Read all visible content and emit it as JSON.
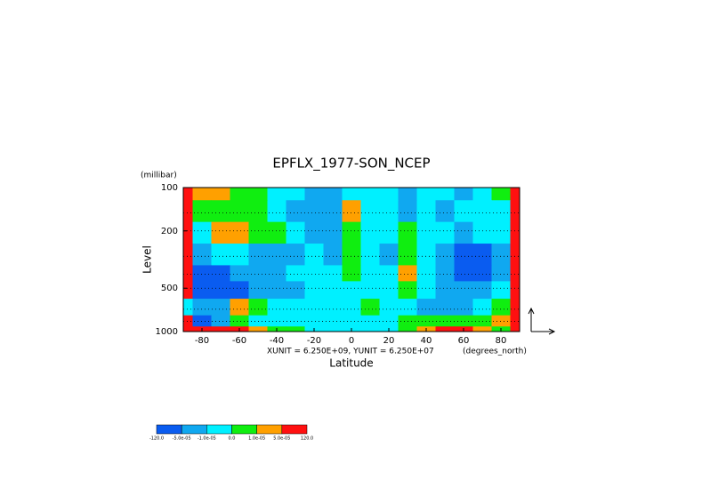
{
  "chart_data": {
    "type": "contour",
    "title": "EPFLX_1977-SON_NCEP",
    "y_unit_label": "(millibar)",
    "y_label": "Level",
    "x_label": "Latitude",
    "x_unit_label": "(degrees_north)",
    "vector_units": "XUNIT = 6.250E+09, YUNIT = 6.250E+07",
    "xlim": [
      -90,
      90
    ],
    "ylim": [
      1000,
      100
    ],
    "y_log": true,
    "grid": true,
    "xticks": [
      -80,
      -60,
      -40,
      -20,
      0,
      20,
      40,
      60,
      80
    ],
    "yticks": [
      100,
      200,
      500,
      1000
    ],
    "x": [
      -90,
      -80,
      -70,
      -60,
      -50,
      -40,
      -30,
      -20,
      -10,
      0,
      10,
      20,
      30,
      40,
      50,
      60,
      70,
      80,
      90
    ],
    "y": [
      100,
      150,
      200,
      300,
      400,
      500,
      700,
      850,
      1000
    ],
    "z": [
      [
        0.0001,
        3e-05,
        3e-05,
        5e-06,
        5e-06,
        -5e-06,
        -5e-06,
        -3e-05,
        -3e-05,
        -5e-06,
        -5e-06,
        -5e-06,
        -3e-05,
        -5e-06,
        -5e-06,
        -3e-05,
        -5e-06,
        5e-06,
        0.0001
      ],
      [
        0.0001,
        5e-06,
        5e-06,
        5e-06,
        5e-06,
        -5e-06,
        -3e-05,
        -3e-05,
        -3e-05,
        3e-05,
        -5e-06,
        -5e-06,
        -3e-05,
        -5e-06,
        -3e-05,
        -5e-06,
        -5e-06,
        -5e-06,
        0.0001
      ],
      [
        0.0001,
        -5e-06,
        3e-05,
        3e-05,
        5e-06,
        5e-06,
        -5e-06,
        -3e-05,
        -3e-05,
        5e-06,
        -5e-06,
        -5e-06,
        5e-06,
        -5e-06,
        -5e-06,
        -3e-05,
        -5e-06,
        -5e-06,
        0.0001
      ],
      [
        0.0001,
        -3e-05,
        -5e-06,
        -5e-06,
        -3e-05,
        -3e-05,
        -3e-05,
        -5e-06,
        -3e-05,
        5e-06,
        -5e-06,
        -3e-05,
        5e-06,
        -5e-06,
        -3e-05,
        -0.0001,
        -0.0001,
        -3e-05,
        0.0001
      ],
      [
        0.0001,
        -0.0001,
        -0.0001,
        -3e-05,
        -3e-05,
        -3e-05,
        -5e-06,
        -5e-06,
        -5e-06,
        5e-06,
        -5e-06,
        -5e-06,
        3e-05,
        -5e-06,
        -3e-05,
        -0.0001,
        -0.0001,
        -3e-05,
        0.0001
      ],
      [
        0.0001,
        -0.0001,
        -0.0001,
        -0.0001,
        -3e-05,
        -3e-05,
        -3e-05,
        -5e-06,
        -5e-06,
        -5e-06,
        -5e-06,
        -5e-06,
        5e-06,
        -5e-06,
        -3e-05,
        -3e-05,
        -3e-05,
        -5e-06,
        0.0001
      ],
      [
        -5e-06,
        -3e-05,
        -3e-05,
        3e-05,
        5e-06,
        -5e-06,
        -5e-06,
        -5e-06,
        -5e-06,
        -5e-06,
        5e-06,
        -5e-06,
        -5e-06,
        -3e-05,
        -3e-05,
        -3e-05,
        -5e-06,
        5e-06,
        0.0001
      ],
      [
        0.0001,
        -0.0001,
        -3e-05,
        5e-06,
        -5e-06,
        -5e-06,
        -5e-06,
        -5e-06,
        -5e-06,
        -5e-06,
        -5e-06,
        -5e-06,
        5e-06,
        5e-06,
        5e-06,
        5e-06,
        5e-06,
        3e-05,
        0.0001
      ],
      [
        0.0001,
        0.0001,
        0.0001,
        0.0001,
        3e-05,
        5e-06,
        5e-06,
        -5e-06,
        -5e-06,
        -5e-06,
        -5e-06,
        -5e-06,
        5e-06,
        3e-05,
        0.0001,
        0.0001,
        3e-05,
        5e-06,
        0.0001
      ]
    ],
    "levels": [
      {
        "value": -120,
        "label": "-120.0"
      },
      {
        "value": -5e-05,
        "label": "-5.0e-05"
      },
      {
        "value": -1e-05,
        "label": "-1.0e-05"
      },
      {
        "value": 0,
        "label": "0.0"
      },
      {
        "value": 1e-05,
        "label": "1.0e-05"
      },
      {
        "value": 5e-05,
        "label": "5.0e-05"
      },
      {
        "value": 120,
        "label": "120.0"
      }
    ],
    "colors": [
      "#0a5cf0",
      "#10a8f0",
      "#00f0ff",
      "#10ee10",
      "#ffa000",
      "#ff1010"
    ]
  }
}
